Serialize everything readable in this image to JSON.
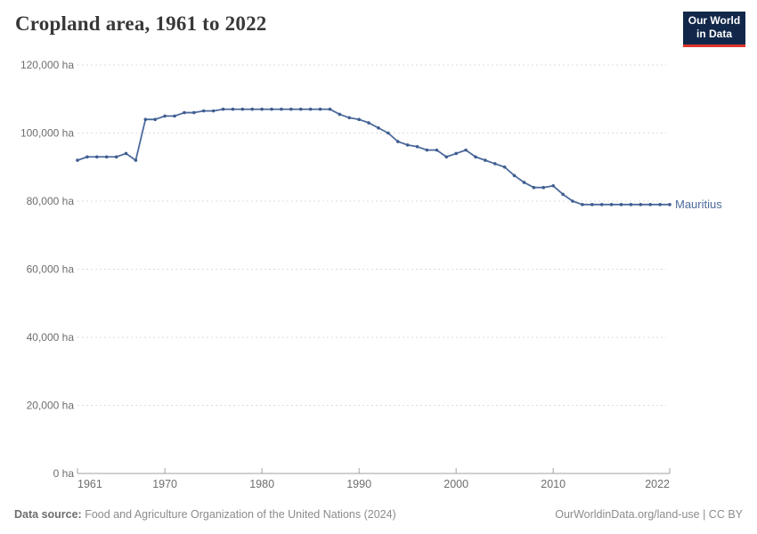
{
  "header": {
    "title": "Cropland area, 1961 to 2022"
  },
  "logo": {
    "line1": "Our World",
    "line2": "in Data",
    "bg_color": "#12284a",
    "accent_color": "#dc352c"
  },
  "chart_data": {
    "type": "line",
    "title": "Cropland area, 1961 to 2022",
    "entity_label": "Mauritius",
    "line_color": "#4c6a9c",
    "marker_color": "#3f5d8f",
    "grid_color": "#dddddd",
    "axis_color": "#a0a0a0",
    "tick_label_color": "#6e6e6e",
    "xlim": [
      1961,
      2022
    ],
    "ylim": [
      0,
      120000
    ],
    "grid": true,
    "legend_position": "right-of-line-end",
    "y_ticks": [
      {
        "value": 0,
        "label": "0 ha"
      },
      {
        "value": 20000,
        "label": "20,000 ha"
      },
      {
        "value": 40000,
        "label": "40,000 ha"
      },
      {
        "value": 60000,
        "label": "60,000 ha"
      },
      {
        "value": 80000,
        "label": "80,000 ha"
      },
      {
        "value": 100000,
        "label": "100,000 ha"
      },
      {
        "value": 120000,
        "label": "120,000 ha"
      }
    ],
    "x_ticks": [
      {
        "value": 1961,
        "label": "1961",
        "anchor": "start"
      },
      {
        "value": 1970,
        "label": "1970",
        "anchor": "middle"
      },
      {
        "value": 1980,
        "label": "1980",
        "anchor": "middle"
      },
      {
        "value": 1990,
        "label": "1990",
        "anchor": "middle"
      },
      {
        "value": 2000,
        "label": "2000",
        "anchor": "middle"
      },
      {
        "value": 2010,
        "label": "2010",
        "anchor": "middle"
      },
      {
        "value": 2022,
        "label": "2022",
        "anchor": "end"
      }
    ],
    "series": [
      {
        "name": "Mauritius",
        "x": [
          1961,
          1962,
          1963,
          1964,
          1965,
          1966,
          1967,
          1968,
          1969,
          1970,
          1971,
          1972,
          1973,
          1974,
          1975,
          1976,
          1977,
          1978,
          1979,
          1980,
          1981,
          1982,
          1983,
          1984,
          1985,
          1986,
          1987,
          1988,
          1989,
          1990,
          1991,
          1992,
          1993,
          1994,
          1995,
          1996,
          1997,
          1998,
          1999,
          2000,
          2001,
          2002,
          2003,
          2004,
          2005,
          2006,
          2007,
          2008,
          2009,
          2010,
          2011,
          2012,
          2013,
          2014,
          2015,
          2016,
          2017,
          2018,
          2019,
          2020,
          2021,
          2022
        ],
        "values": [
          92000,
          93000,
          93000,
          93000,
          93000,
          94000,
          92000,
          104000,
          104000,
          105000,
          105000,
          106000,
          106000,
          106500,
          106500,
          107000,
          107000,
          107000,
          107000,
          107000,
          107000,
          107000,
          107000,
          107000,
          107000,
          107000,
          107000,
          105500,
          104500,
          104000,
          103000,
          101500,
          100000,
          97500,
          96500,
          96000,
          95000,
          95000,
          93000,
          94000,
          95000,
          93000,
          92000,
          91000,
          90000,
          87500,
          85500,
          84000,
          84000,
          84500,
          82000,
          80000,
          79000,
          79000,
          79000,
          79000,
          79000,
          79000,
          79000,
          79000,
          79000,
          79000
        ]
      }
    ]
  },
  "footer": {
    "source_label": "Data source:",
    "source_text": " Food and Agriculture Organization of the United Nations (2024)",
    "credit": "OurWorldinData.org/land-use | CC BY"
  }
}
